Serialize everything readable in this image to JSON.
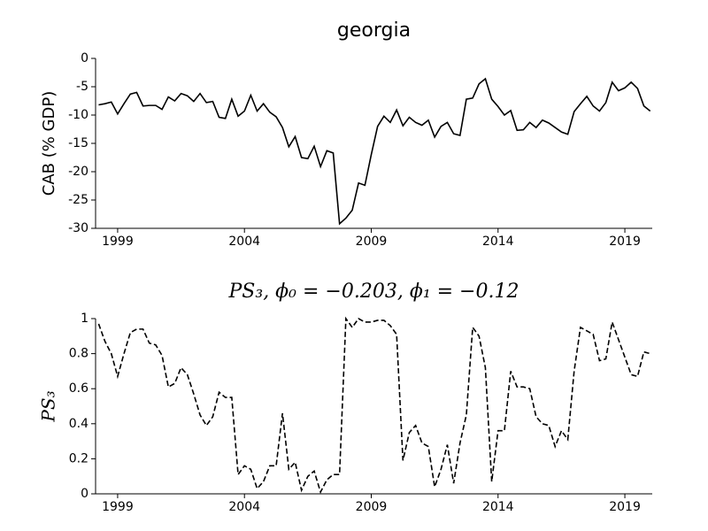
{
  "chart_data": [
    {
      "type": "line",
      "title": "georgia",
      "ylabel": "CAB (% GDP)",
      "color": "#000000",
      "linestyle": "solid",
      "x": [
        1998.25,
        1998.5,
        1998.75,
        1999,
        1999.25,
        1999.5,
        1999.75,
        2000,
        2000.25,
        2000.5,
        2000.75,
        2001,
        2001.25,
        2001.5,
        2001.75,
        2002,
        2002.25,
        2002.5,
        2002.75,
        2003,
        2003.25,
        2003.5,
        2003.75,
        2004,
        2004.25,
        2004.5,
        2004.75,
        2005,
        2005.25,
        2005.5,
        2005.75,
        2006,
        2006.25,
        2006.5,
        2006.75,
        2007,
        2007.25,
        2007.5,
        2007.75,
        2008,
        2008.25,
        2008.5,
        2008.75,
        2009,
        2009.25,
        2009.5,
        2009.75,
        2010,
        2010.25,
        2010.5,
        2010.75,
        2011,
        2011.25,
        2011.5,
        2011.75,
        2012,
        2012.25,
        2012.5,
        2012.75,
        2013,
        2013.25,
        2013.5,
        2013.75,
        2014,
        2014.25,
        2014.5,
        2014.75,
        2015,
        2015.25,
        2015.5,
        2015.75,
        2016,
        2016.25,
        2016.5,
        2016.75,
        2017,
        2017.25,
        2017.5,
        2017.75,
        2018,
        2018.25,
        2018.5,
        2018.75,
        2019,
        2019.25,
        2019.5,
        2019.75,
        2020
      ],
      "values": [
        -8.2,
        -8.0,
        -7.7,
        -9.8,
        -8.0,
        -6.3,
        -6.0,
        -8.4,
        -8.3,
        -8.3,
        -9.0,
        -6.8,
        -7.5,
        -6.2,
        -6.6,
        -7.6,
        -6.2,
        -7.8,
        -7.6,
        -10.4,
        -10.6,
        -7.2,
        -10.2,
        -9.3,
        -6.5,
        -9.3,
        -8.0,
        -9.5,
        -10.3,
        -12.2,
        -15.6,
        -13.8,
        -17.5,
        -17.7,
        -15.5,
        -19.1,
        -16.3,
        -16.7,
        -29.2,
        -28.2,
        -26.8,
        -22.0,
        -22.4,
        -17.0,
        -12.0,
        -10.2,
        -11.3,
        -9.1,
        -11.9,
        -10.4,
        -11.3,
        -11.8,
        -10.9,
        -13.9,
        -12.0,
        -11.3,
        -13.3,
        -13.6,
        -7.2,
        -7.0,
        -4.5,
        -3.6,
        -7.2,
        -8.5,
        -10.0,
        -9.2,
        -12.7,
        -12.6,
        -11.3,
        -12.2,
        -10.9,
        -11.4,
        -12.2,
        -13.0,
        -13.4,
        -9.4,
        -8.0,
        -6.7,
        -8.4,
        -9.3,
        -7.8,
        -4.2,
        -5.7,
        -5.2,
        -4.2,
        -5.3,
        -8.4,
        -9.3
      ],
      "xlim": [
        1998.13,
        2020.08
      ],
      "xticks": [
        1999,
        2004,
        2009,
        2014,
        2019
      ],
      "ylim": [
        -30,
        0
      ],
      "yticks": [
        -30,
        -25,
        -20,
        -15,
        -10,
        -5,
        0
      ]
    },
    {
      "type": "line",
      "title": "PS₃, ϕ₀ = −0.203, ϕ₁ = −0.12",
      "ylabel": "PS₃",
      "color": "#000000",
      "linestyle": "dashed",
      "x": [
        1998.25,
        1998.5,
        1998.75,
        1999,
        1999.25,
        1999.5,
        1999.75,
        2000,
        2000.25,
        2000.5,
        2000.75,
        2001,
        2001.25,
        2001.5,
        2001.75,
        2002,
        2002.25,
        2002.5,
        2002.75,
        2003,
        2003.25,
        2003.5,
        2003.75,
        2004,
        2004.25,
        2004.5,
        2004.75,
        2005,
        2005.25,
        2005.5,
        2005.75,
        2006,
        2006.25,
        2006.5,
        2006.75,
        2007,
        2007.25,
        2007.5,
        2007.75,
        2008,
        2008.25,
        2008.5,
        2008.75,
        2009,
        2009.25,
        2009.5,
        2009.75,
        2010,
        2010.25,
        2010.5,
        2010.75,
        2011,
        2011.25,
        2011.5,
        2011.75,
        2012,
        2012.25,
        2012.5,
        2012.75,
        2013,
        2013.25,
        2013.5,
        2013.75,
        2014,
        2014.25,
        2014.5,
        2014.75,
        2015,
        2015.25,
        2015.5,
        2015.75,
        2016,
        2016.25,
        2016.5,
        2016.75,
        2017,
        2017.25,
        2017.5,
        2017.75,
        2018,
        2018.25,
        2018.5,
        2018.75,
        2019,
        2019.25,
        2019.5,
        2019.75,
        2020
      ],
      "values": [
        0.97,
        0.87,
        0.8,
        0.67,
        0.8,
        0.92,
        0.94,
        0.94,
        0.86,
        0.85,
        0.79,
        0.61,
        0.63,
        0.72,
        0.68,
        0.57,
        0.45,
        0.39,
        0.44,
        0.58,
        0.55,
        0.55,
        0.11,
        0.16,
        0.14,
        0.03,
        0.07,
        0.16,
        0.16,
        0.46,
        0.14,
        0.18,
        0.02,
        0.1,
        0.13,
        0.01,
        0.08,
        0.11,
        0.11,
        1.0,
        0.95,
        1.0,
        0.98,
        0.98,
        0.99,
        0.99,
        0.96,
        0.91,
        0.19,
        0.35,
        0.39,
        0.29,
        0.27,
        0.04,
        0.14,
        0.28,
        0.06,
        0.29,
        0.45,
        0.95,
        0.9,
        0.72,
        0.07,
        0.36,
        0.36,
        0.7,
        0.61,
        0.61,
        0.6,
        0.44,
        0.4,
        0.39,
        0.27,
        0.36,
        0.31,
        0.7,
        0.95,
        0.93,
        0.91,
        0.76,
        0.77,
        0.98,
        0.88,
        0.78,
        0.68,
        0.67,
        0.81,
        0.8
      ],
      "xlim": [
        1998.13,
        2020.08
      ],
      "xticks": [
        1999,
        2004,
        2009,
        2014,
        2019
      ],
      "ylim": [
        0,
        1
      ],
      "yticks": [
        0,
        0.2,
        0.4,
        0.6,
        0.8,
        1
      ]
    }
  ]
}
